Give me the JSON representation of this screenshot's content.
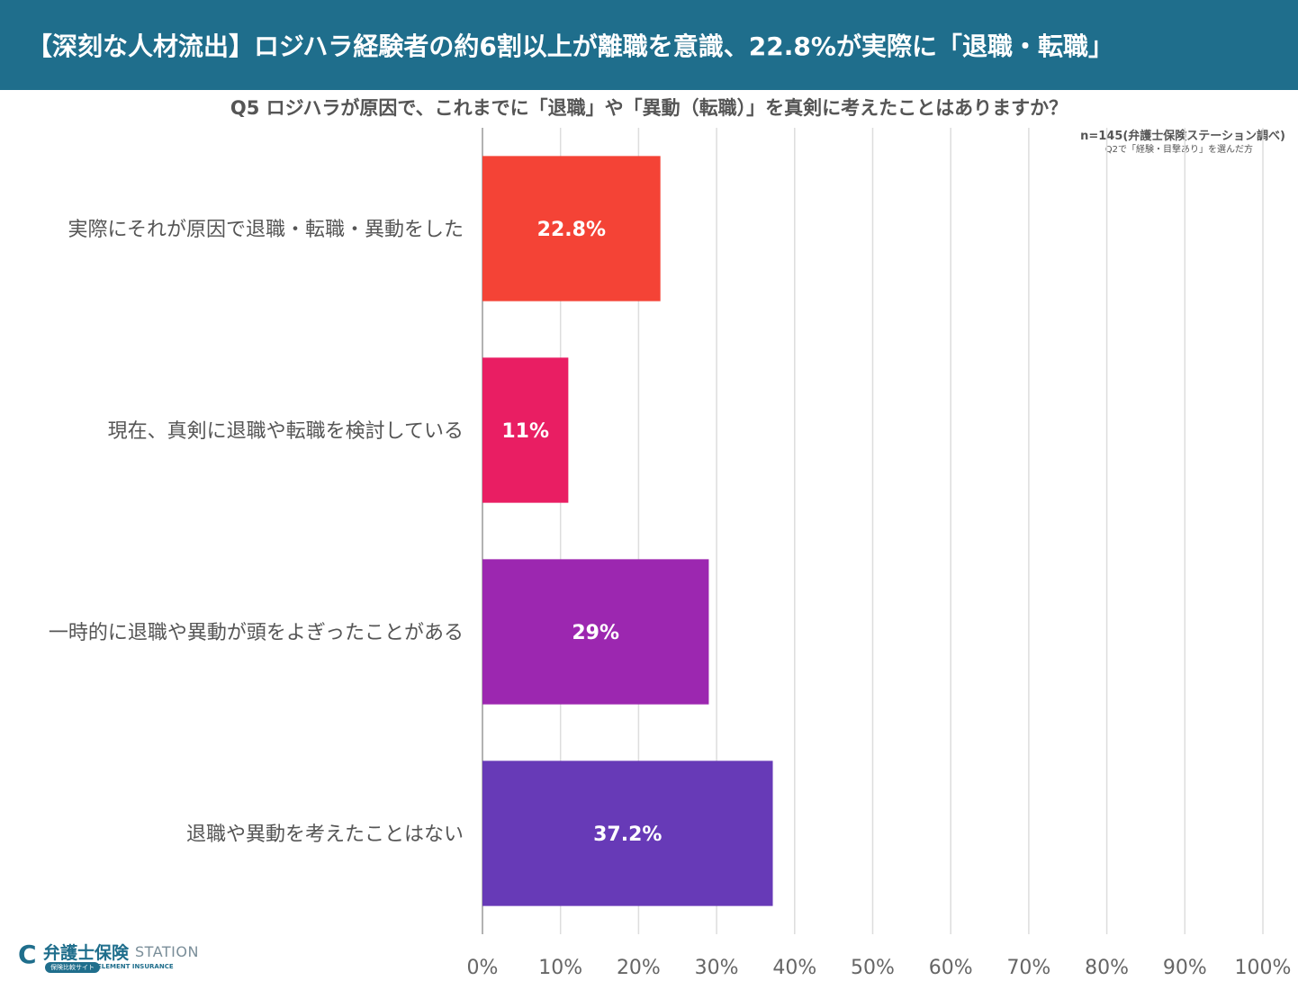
{
  "header": {
    "title": "【深刻な人材流出】ロジハラ経験者の約6割以上が離職を意識、22.8%が実際に「退職・転職」"
  },
  "question": "Q5 ロジハラが原因で、これまでに「退職」や「異動（転職）」を真剣に考えたことはありますか？",
  "notes": {
    "sample": "n=145(弁護士保険ステーション調べ)",
    "subset": "Q2で「経験・目撃あり」を選んだ方"
  },
  "colors": {
    "banner": "#1f6e8c",
    "bars": [
      "#f44336",
      "#e91e63",
      "#9c27b0",
      "#673ab7"
    ]
  },
  "logo": {
    "icon": "logo-c-mark",
    "name": "弁護士保険",
    "station": "STATION",
    "badge": "保険比較サイト",
    "company": "ELEMENT INSURANCE"
  },
  "chart_data": {
    "type": "bar",
    "orientation": "horizontal",
    "categories": [
      "実際にそれが原因で退職・転職・異動をした",
      "現在、真剣に退職や転職を検討している",
      "一時的に退職や異動が頭をよぎったことがある",
      "退職や異動を考えたことはない"
    ],
    "values": [
      22.8,
      11,
      29,
      37.2
    ],
    "value_labels": [
      "22.8%",
      "11%",
      "29%",
      "37.2%"
    ],
    "xlim": [
      0,
      100
    ],
    "x_ticks": [
      0,
      10,
      20,
      30,
      40,
      50,
      60,
      70,
      80,
      90,
      100
    ],
    "x_tick_labels": [
      "0%",
      "10%",
      "20%",
      "30%",
      "40%",
      "50%",
      "60%",
      "70%",
      "80%",
      "90%",
      "100%"
    ],
    "grid": true,
    "legend": false
  }
}
